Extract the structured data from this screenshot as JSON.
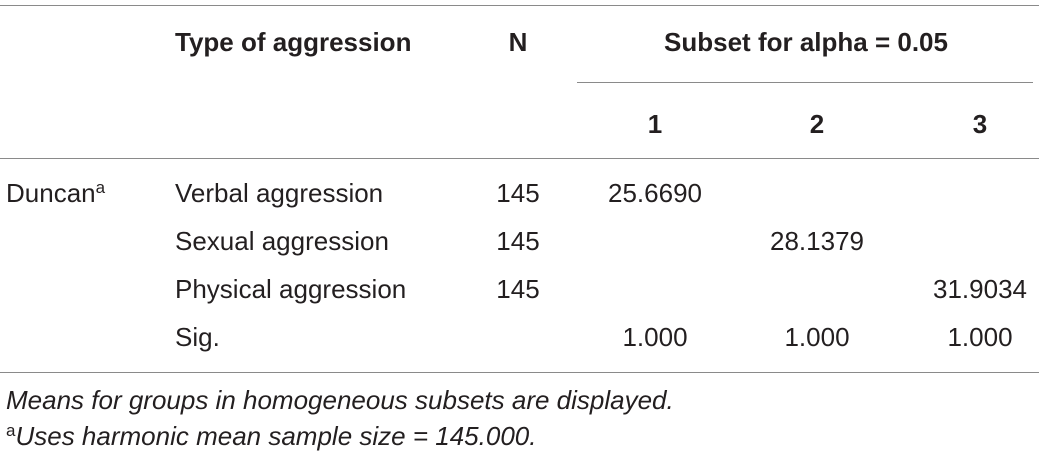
{
  "table": {
    "header": {
      "type": "Type of aggression",
      "n": "N",
      "subset": "Subset for alpha = 0.05",
      "subset_columns": [
        "1",
        "2",
        "3"
      ]
    },
    "method": "Duncan",
    "method_marker": "a",
    "rows": [
      {
        "label": "Verbal aggression",
        "n": "145",
        "values": [
          "25.6690",
          null,
          null
        ]
      },
      {
        "label": "Sexual aggression",
        "n": "145",
        "values": [
          null,
          "28.1379",
          null
        ]
      },
      {
        "label": "Physical aggression",
        "n": "145",
        "values": [
          null,
          null,
          "31.9034"
        ]
      }
    ],
    "sig": {
      "label": "Sig.",
      "values": [
        "1.000",
        "1.000",
        "1.000"
      ]
    }
  },
  "notes": {
    "means": "Means for groups in homogeneous subsets are displayed.",
    "marker": "a",
    "harmonic": "Uses harmonic mean sample size = 145.000."
  }
}
